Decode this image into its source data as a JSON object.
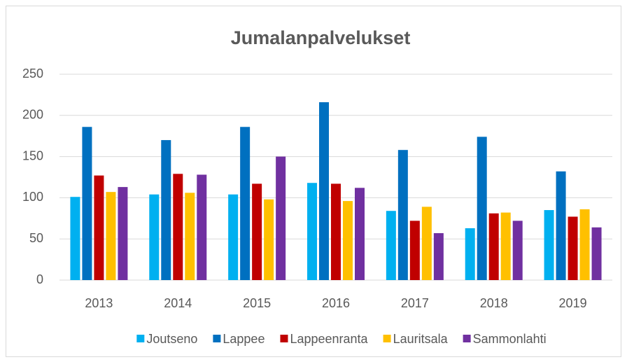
{
  "chart_data": {
    "type": "bar",
    "title": "Jumalanpalvelukset",
    "categories": [
      "2013",
      "2014",
      "2015",
      "2016",
      "2017",
      "2018",
      "2019"
    ],
    "series": [
      {
        "name": "Joutseno",
        "color": "#00b0f0",
        "values": [
          101,
          104,
          104,
          118,
          84,
          63,
          85
        ]
      },
      {
        "name": "Lappee",
        "color": "#0070c0",
        "values": [
          186,
          170,
          186,
          216,
          158,
          174,
          132
        ]
      },
      {
        "name": "Lappeenranta",
        "color": "#c00000",
        "values": [
          127,
          129,
          117,
          117,
          72,
          81,
          77
        ]
      },
      {
        "name": "Lauritsala",
        "color": "#ffc000",
        "values": [
          107,
          106,
          98,
          96,
          89,
          82,
          86
        ]
      },
      {
        "name": "Sammonlahti",
        "color": "#7030a0",
        "values": [
          113,
          128,
          150,
          112,
          57,
          72,
          64
        ]
      }
    ],
    "ylim": [
      0,
      250
    ],
    "yticks": [
      0,
      50,
      100,
      150,
      200,
      250
    ],
    "grid": true,
    "legend": "bottom"
  }
}
